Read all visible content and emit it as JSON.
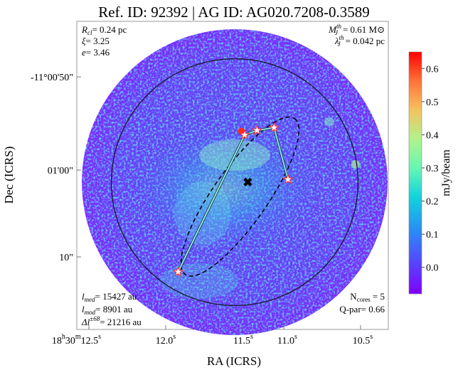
{
  "chart_data": {
    "type": "heatmap",
    "title": "Ref. ID: 92392 | AG ID: AG020.7208-0.3589",
    "xlabel": "RA (ICRS)",
    "ylabel": "Dec (ICRS)",
    "x_ticks": [
      {
        "prefix": "18",
        "prefix_sup": "h",
        "mid": "30",
        "mid_sup": "m",
        "main": "12.5",
        "sup": "s"
      },
      {
        "prefix": "",
        "prefix_sup": "",
        "mid": "",
        "mid_sup": "",
        "main": "12.0",
        "sup": "s"
      },
      {
        "prefix": "",
        "prefix_sup": "",
        "mid": "",
        "mid_sup": "",
        "main": "11.5",
        "sup": "s"
      },
      {
        "prefix": "",
        "prefix_sup": "",
        "mid": "",
        "mid_sup": "",
        "main": "11.0",
        "sup": "s"
      },
      {
        "prefix": "",
        "prefix_sup": "",
        "mid": "",
        "mid_sup": "",
        "main": "10.5",
        "sup": "s"
      }
    ],
    "y_ticks": [
      "-11°00'50\"",
      "01'00\"",
      "10\""
    ],
    "colorbar": {
      "label": "mJy/beam",
      "range": [
        -0.08,
        0.65
      ],
      "ticks": [
        0.0,
        0.1,
        0.2,
        0.3,
        0.4,
        0.5,
        0.6
      ],
      "tick_labels": [
        "0.0",
        "0.1",
        "0.2",
        "0.3",
        "0.4",
        "0.5",
        "0.6"
      ],
      "colormap": "rainbow"
    },
    "annotations": {
      "top_left": [
        {
          "sym": "R",
          "sub": "cl",
          "sup": "",
          "val": "= 0.24 pc"
        },
        {
          "sym": "ξ",
          "sub": "",
          "sup": "",
          "val": "= 3.25"
        },
        {
          "sym": "e",
          "sub": "",
          "sup": "",
          "val": "= 3.46"
        }
      ],
      "top_right": [
        {
          "sym": "M",
          "sub": "J",
          "sup": "th",
          "val": "= 0.61 M⊙"
        },
        {
          "sym": "λ",
          "sub": "J",
          "sup": "th",
          "val": "= 0.042 pc"
        }
      ],
      "bottom_left": [
        {
          "sym": "l",
          "sub": "med",
          "sup": "",
          "val": "= 15427 au"
        },
        {
          "sym": "l",
          "sub": "mod",
          "sup": "",
          "val": "= 8901 au"
        },
        {
          "sym": "Δl",
          "sub": "",
          "sup": "±68",
          "val": "= 21216 au"
        }
      ],
      "bottom_right": [
        "N",
        "cores",
        " = 5",
        "Q-par= 0.66"
      ]
    },
    "cores": [
      {
        "ra_s": 11.92,
        "dec_arcsec": 71.5
      },
      {
        "ra_s": 11.49,
        "dec_arcsec": 56.4
      },
      {
        "ra_s": 11.41,
        "dec_arcsec": 55.9
      },
      {
        "ra_s": 11.3,
        "dec_arcsec": 55.6
      },
      {
        "ra_s": 11.21,
        "dec_arcsec": 61.3
      }
    ],
    "centroid": {
      "ra_s": 11.47,
      "dec_arcsec": 61.6
    },
    "peak_emission": {
      "ra_s": 11.51,
      "dec_arcsec": 56.0,
      "value": 0.6
    },
    "mst_edges": [
      [
        0,
        1
      ],
      [
        1,
        2
      ],
      [
        2,
        3
      ],
      [
        3,
        4
      ]
    ],
    "ellipse": {
      "ra_s": 11.52,
      "dec_arcsec": 63.2,
      "major_arcsec": 21.0,
      "minor_arcsec": 6.0,
      "angle_deg": -55
    },
    "circle_radius_arcsec": 13.6,
    "colors": {
      "ellipse": "#000000",
      "mst": "#8ff0ea",
      "marker_fill": "#ffffff",
      "marker_edge": "#ff3030",
      "circle": "#1a1a2e"
    }
  }
}
